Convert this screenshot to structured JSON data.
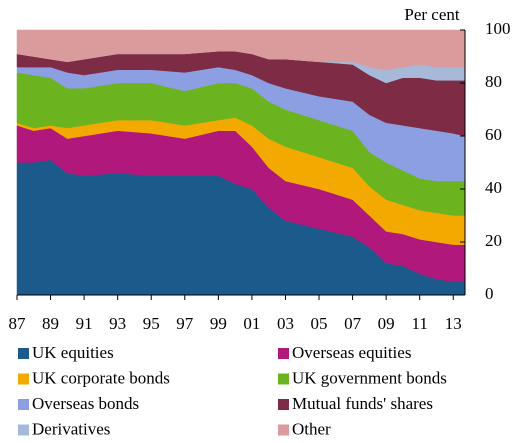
{
  "chart_data": {
    "type": "stacked_area",
    "y_label": "Per cent",
    "x": [
      1987,
      1988,
      1989,
      1990,
      1991,
      1993,
      1995,
      1997,
      1999,
      2000,
      2001,
      2002,
      2003,
      2005,
      2007,
      2008,
      2009,
      2010,
      2011,
      2012,
      2013,
      2013.7
    ],
    "xlim": [
      1987,
      2013.7
    ],
    "xticks": [
      {
        "value": 1987,
        "label": "87"
      },
      {
        "value": 1989,
        "label": "89"
      },
      {
        "value": 1991,
        "label": "91"
      },
      {
        "value": 1993,
        "label": "93"
      },
      {
        "value": 1995,
        "label": "95"
      },
      {
        "value": 1997,
        "label": "97"
      },
      {
        "value": 1999,
        "label": "99"
      },
      {
        "value": 2001,
        "label": "01"
      },
      {
        "value": 2003,
        "label": "03"
      },
      {
        "value": 2005,
        "label": "05"
      },
      {
        "value": 2007,
        "label": "07"
      },
      {
        "value": 2009,
        "label": "09"
      },
      {
        "value": 2011,
        "label": "11"
      },
      {
        "value": 2013,
        "label": "13"
      }
    ],
    "ylim": [
      0,
      100
    ],
    "yticks": [
      0,
      20,
      40,
      60,
      80,
      100
    ],
    "series": [
      {
        "name": "UK equities",
        "color": "#1b5a8a",
        "values": [
          50,
          50,
          51,
          46,
          45,
          46,
          45,
          45,
          45,
          42,
          40,
          33,
          28,
          25,
          22,
          18,
          12,
          11,
          8,
          6,
          5,
          5
        ]
      },
      {
        "name": "Overseas equities",
        "color": "#b0187c",
        "values": [
          14,
          12,
          12,
          13,
          15,
          16,
          16,
          14,
          17,
          20,
          16,
          15,
          15,
          15,
          14,
          12,
          12,
          12,
          13,
          14,
          14,
          14
        ]
      },
      {
        "name": "UK corporate bonds",
        "color": "#f4a900",
        "values": [
          1,
          1,
          1,
          4,
          4,
          4,
          5,
          5,
          4,
          5,
          8,
          11,
          13,
          12,
          12,
          11,
          12,
          11,
          11,
          11,
          11,
          11
        ]
      },
      {
        "name": "UK government bonds",
        "color": "#6cb41f",
        "values": [
          19,
          20,
          18,
          15,
          14,
          14,
          14,
          13,
          14,
          13,
          14,
          14,
          14,
          14,
          14,
          13,
          14,
          13,
          12,
          12,
          13,
          13
        ]
      },
      {
        "name": "Overseas bonds",
        "color": "#8c9fe2",
        "values": [
          2,
          3,
          4,
          6,
          5,
          5,
          5,
          7,
          6,
          5,
          5,
          7,
          8,
          9,
          11,
          14,
          15,
          17,
          19,
          19,
          18,
          17
        ]
      },
      {
        "name": "Mutual funds' shares",
        "color": "#7e2b45",
        "values": [
          5,
          4,
          3,
          4,
          6,
          6,
          6,
          7,
          6,
          7,
          8,
          9,
          11,
          13,
          14,
          15,
          15,
          18,
          19,
          19,
          20,
          21
        ]
      },
      {
        "name": "Derivatives",
        "color": "#a7b9d8",
        "values": [
          0,
          0,
          0,
          0,
          0,
          0,
          0,
          0,
          0,
          0,
          0,
          0,
          0,
          0,
          1,
          3,
          5,
          4,
          5,
          5,
          5,
          5
        ]
      },
      {
        "name": "Other",
        "color": "#d99b9b",
        "values": [
          9,
          10,
          11,
          12,
          11,
          9,
          9,
          9,
          8,
          8,
          9,
          11,
          11,
          12,
          12,
          14,
          15,
          14,
          13,
          14,
          14,
          14
        ]
      }
    ]
  }
}
